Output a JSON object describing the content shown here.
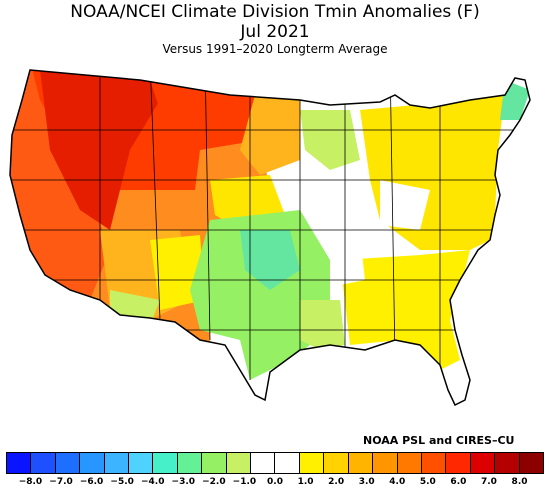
{
  "title": {
    "line1": "NOAA/NCEI Climate Division Tmin Anomalies (F)",
    "line2": "Jul 2021",
    "line3": "Versus 1991–2020 Longterm Average"
  },
  "credit": "NOAA PSL and CIRES–CU",
  "legend": {
    "colors": [
      "#0a14ff",
      "#1e50ff",
      "#1e6eff",
      "#2896ff",
      "#3cb4ff",
      "#50d2ff",
      "#46f0c8",
      "#64f096",
      "#96f064",
      "#c8f064",
      "#ffffff",
      "#ffffff",
      "#fff000",
      "#ffd200",
      "#ffb400",
      "#ff9600",
      "#ff7800",
      "#ff5000",
      "#ff2800",
      "#dc0000",
      "#b40000",
      "#8c0000"
    ],
    "ticks": [
      "−8.0",
      "−7.0",
      "−6.0",
      "−5.0",
      "−4.0",
      "−3.0",
      "−2.0",
      "−1.0",
      "0.0",
      "1.0",
      "2.0",
      "3.0",
      "4.0",
      "5.0",
      "6.0",
      "7.0",
      "8.0"
    ]
  },
  "map_colors": {
    "deep_red": "#e61e00",
    "red": "#ff3c00",
    "red_orange": "#ff5a14",
    "orange": "#ff8c1e",
    "light_orange": "#ffb41e",
    "yellow": "#ffe600",
    "light_yellow": "#fff000",
    "lime": "#c8f064",
    "green": "#96f064",
    "teal": "#64e6a0",
    "white": "#ffffff"
  }
}
